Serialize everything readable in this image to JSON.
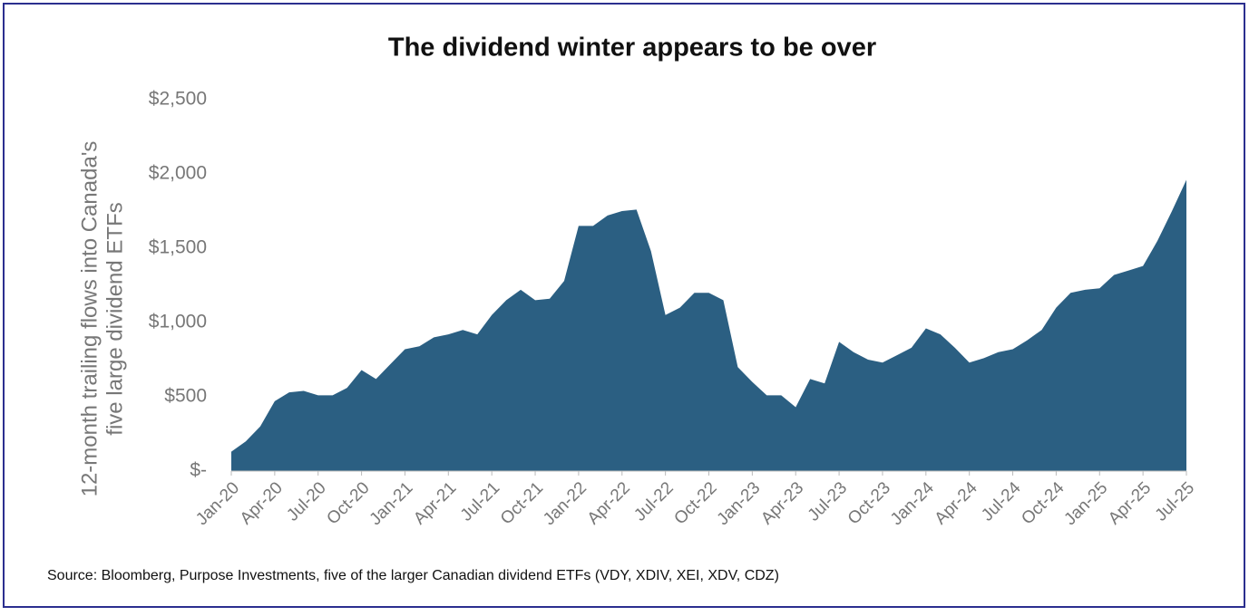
{
  "chart_data": {
    "type": "area",
    "title": "The dividend winter appears to be over",
    "y_label": [
      "12-month trailing flows into Canada's",
      "five large dividend ETFs"
    ],
    "source": "Source: Bloomberg, Purpose Investments, five of the larger Canadian dividend ETFs (VDY, XDIV, XEI, XDV, CDZ)",
    "color": "#2b5f82",
    "categories": [
      "Jan-20",
      null,
      null,
      "Apr-20",
      null,
      null,
      "Jul-20",
      null,
      null,
      "Oct-20",
      null,
      null,
      "Jan-21",
      null,
      null,
      "Apr-21",
      null,
      null,
      "Jul-21",
      null,
      null,
      "Oct-21",
      null,
      null,
      "Jan-22",
      null,
      null,
      "Apr-22",
      null,
      null,
      "Jul-22",
      null,
      null,
      "Oct-22",
      null,
      null,
      "Jan-23",
      null,
      null,
      "Apr-23",
      null,
      null,
      "Jul-23",
      null,
      null,
      "Oct-23",
      null,
      null,
      "Jan-24",
      null,
      null,
      "Apr-24",
      null,
      null,
      "Jul-24",
      null,
      null,
      "Oct-24",
      null,
      null,
      "Jan-25",
      null,
      null,
      "Apr-25",
      null,
      null,
      "Jul-25"
    ],
    "values": [
      130,
      200,
      300,
      470,
      530,
      540,
      510,
      510,
      560,
      680,
      620,
      720,
      820,
      840,
      900,
      920,
      950,
      920,
      1050,
      1150,
      1220,
      1150,
      1160,
      1280,
      1650,
      1650,
      1720,
      1750,
      1760,
      1480,
      1050,
      1100,
      1200,
      1200,
      1150,
      700,
      600,
      510,
      510,
      430,
      620,
      590,
      870,
      800,
      750,
      730,
      780,
      830,
      960,
      920,
      830,
      730,
      760,
      800,
      820,
      880,
      950,
      1100,
      1200,
      1220,
      1230,
      1320,
      1350,
      1380,
      1550,
      1750,
      1960
    ],
    "ylim": [
      0,
      2500
    ],
    "yticks": [
      {
        "value": 0,
        "label": "$-"
      },
      {
        "value": 500,
        "label": "$500"
      },
      {
        "value": 1000,
        "label": "$1,000"
      },
      {
        "value": 1500,
        "label": "$1,500"
      },
      {
        "value": 2000,
        "label": "$2,000"
      },
      {
        "value": 2500,
        "label": "$2,500"
      }
    ]
  }
}
